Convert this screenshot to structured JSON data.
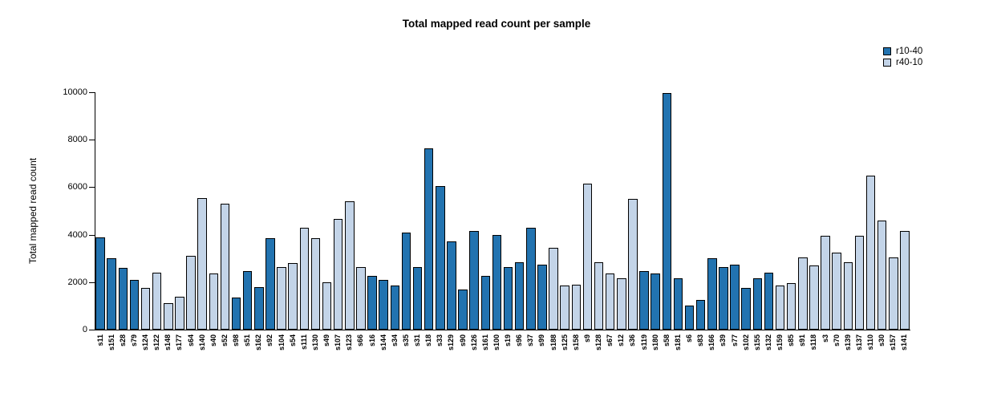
{
  "chart_data": {
    "type": "bar",
    "title": "Total mapped read count per sample",
    "xlabel": "",
    "ylabel": "Total mapped read count",
    "ylim": [
      0,
      10000
    ],
    "yticks": [
      0,
      2000,
      4000,
      6000,
      8000,
      10000
    ],
    "grid": false,
    "legend_position": "top-right",
    "legend": [
      {
        "name": "r10-40",
        "color": "#2273b0"
      },
      {
        "name": "r40-10",
        "color": "#c3d4e8"
      }
    ],
    "categories": [
      "s11",
      "s151",
      "s28",
      "s79",
      "s124",
      "s122",
      "s148",
      "s177",
      "s64",
      "s140",
      "s40",
      "s52",
      "s98",
      "s51",
      "s162",
      "s92",
      "s104",
      "s54",
      "s111",
      "s130",
      "s49",
      "s107",
      "s123",
      "s66",
      "s16",
      "s144",
      "s34",
      "s35",
      "s31",
      "s18",
      "s33",
      "s129",
      "s90",
      "s126",
      "s161",
      "s100",
      "s19",
      "s96",
      "s37",
      "s99",
      "s188",
      "s125",
      "s158",
      "s9",
      "s128",
      "s67",
      "s12",
      "s36",
      "s119",
      "s180",
      "s58",
      "s181",
      "s6",
      "s83",
      "s166",
      "s39",
      "s77",
      "s102",
      "s155",
      "s132",
      "s159",
      "s85",
      "s91",
      "s118",
      "s3",
      "s70",
      "s139",
      "s137",
      "s110",
      "s30",
      "s157",
      "s141"
    ],
    "values": [
      3900,
      3000,
      2600,
      2100,
      1750,
      2400,
      1100,
      1400,
      3100,
      5550,
      2350,
      5300,
      1350,
      2450,
      1800,
      3850,
      2650,
      2800,
      4300,
      3850,
      2000,
      4650,
      5400,
      2650,
      2250,
      2100,
      1850,
      4100,
      2650,
      7650,
      6050,
      3700,
      1700,
      4150,
      2250,
      4000,
      2650,
      2850,
      4300,
      2750,
      3450,
      1850,
      1900,
      6150,
      2850,
      2350,
      2150,
      5500,
      2450,
      2350,
      9950,
      2150,
      1000,
      1250,
      3000,
      2650,
      2750,
      1750,
      2150,
      2400,
      1850,
      1950,
      3050,
      2700,
      3950,
      3250,
      2850,
      3950,
      6500,
      4600,
      3050,
      4150
    ],
    "groups": [
      "r10-40",
      "r10-40",
      "r10-40",
      "r10-40",
      "r40-10",
      "r40-10",
      "r40-10",
      "r40-10",
      "r40-10",
      "r40-10",
      "r40-10",
      "r40-10",
      "r10-40",
      "r10-40",
      "r10-40",
      "r10-40",
      "r40-10",
      "r40-10",
      "r40-10",
      "r40-10",
      "r40-10",
      "r40-10",
      "r40-10",
      "r40-10",
      "r10-40",
      "r10-40",
      "r10-40",
      "r10-40",
      "r10-40",
      "r10-40",
      "r10-40",
      "r10-40",
      "r10-40",
      "r10-40",
      "r10-40",
      "r10-40",
      "r10-40",
      "r10-40",
      "r10-40",
      "r10-40",
      "r40-10",
      "r40-10",
      "r40-10",
      "r40-10",
      "r40-10",
      "r40-10",
      "r40-10",
      "r40-10",
      "r10-40",
      "r10-40",
      "r10-40",
      "r10-40",
      "r10-40",
      "r10-40",
      "r10-40",
      "r10-40",
      "r10-40",
      "r10-40",
      "r10-40",
      "r10-40",
      "r40-10",
      "r40-10",
      "r40-10",
      "r40-10",
      "r40-10",
      "r40-10",
      "r40-10",
      "r40-10",
      "r40-10",
      "r40-10",
      "r40-10",
      "r40-10"
    ]
  }
}
